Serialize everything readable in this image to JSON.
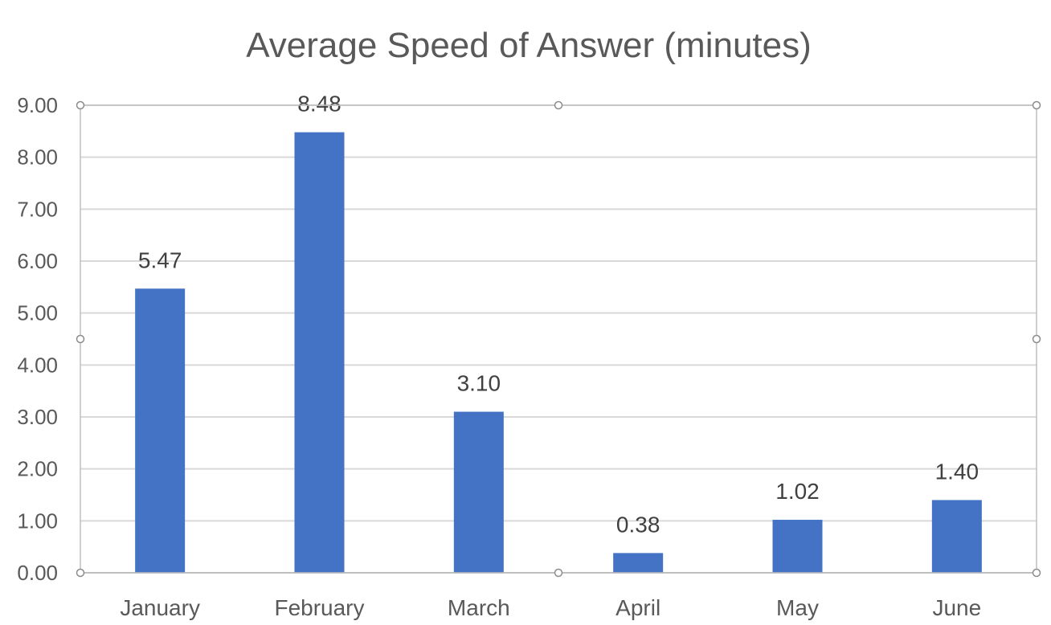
{
  "chart_data": {
    "type": "bar",
    "title": "Average Speed of Answer (minutes)",
    "categories": [
      "January",
      "February",
      "March",
      "April",
      "May",
      "June"
    ],
    "values": [
      5.47,
      8.48,
      3.1,
      0.38,
      1.02,
      1.4
    ],
    "data_labels": [
      "5.47",
      "8.48",
      "3.10",
      "0.38",
      "1.02",
      "1.40"
    ],
    "yticks": [
      "0.00",
      "1.00",
      "2.00",
      "3.00",
      "4.00",
      "5.00",
      "6.00",
      "7.00",
      "8.00",
      "9.00"
    ],
    "ylim": [
      0,
      9
    ],
    "grid": true,
    "legend": "none",
    "bar_color": "#4472c4",
    "selected": true
  }
}
